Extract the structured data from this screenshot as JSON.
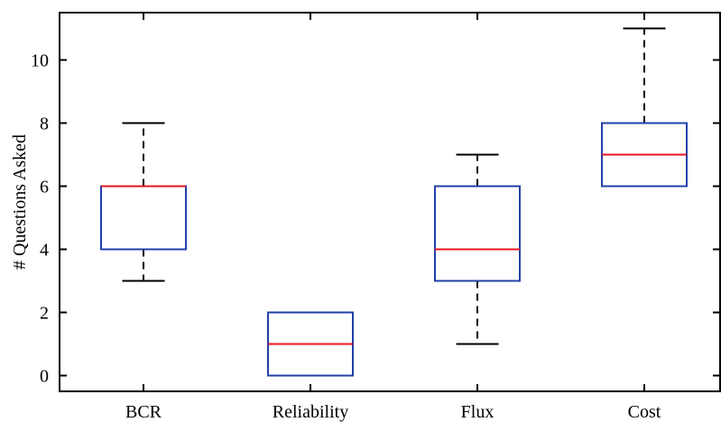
{
  "chart_data": {
    "type": "box",
    "title": "",
    "xlabel": "",
    "ylabel": "# Questions Asked",
    "ylim": [
      -0.5,
      11.5
    ],
    "yticks": [
      0,
      2,
      4,
      6,
      8,
      10
    ],
    "grid": false,
    "categories": [
      "BCR",
      "Reliability",
      "Flux",
      "Cost"
    ],
    "boxes": [
      {
        "category": "BCR",
        "whisker_low": 3,
        "q1": 4,
        "median": 6,
        "q3": 6,
        "whisker_high": 8
      },
      {
        "category": "Reliability",
        "whisker_low": 0,
        "q1": 0,
        "median": 1,
        "q3": 2,
        "whisker_high": 2
      },
      {
        "category": "Flux",
        "whisker_low": 1,
        "q1": 3,
        "median": 4,
        "q3": 6,
        "whisker_high": 7
      },
      {
        "category": "Cost",
        "whisker_low": 6,
        "q1": 6,
        "median": 7,
        "q3": 8,
        "whisker_high": 11
      }
    ],
    "colors": {
      "box": "#2140a8",
      "median": "#e8141c",
      "whisker": "#000000"
    }
  }
}
